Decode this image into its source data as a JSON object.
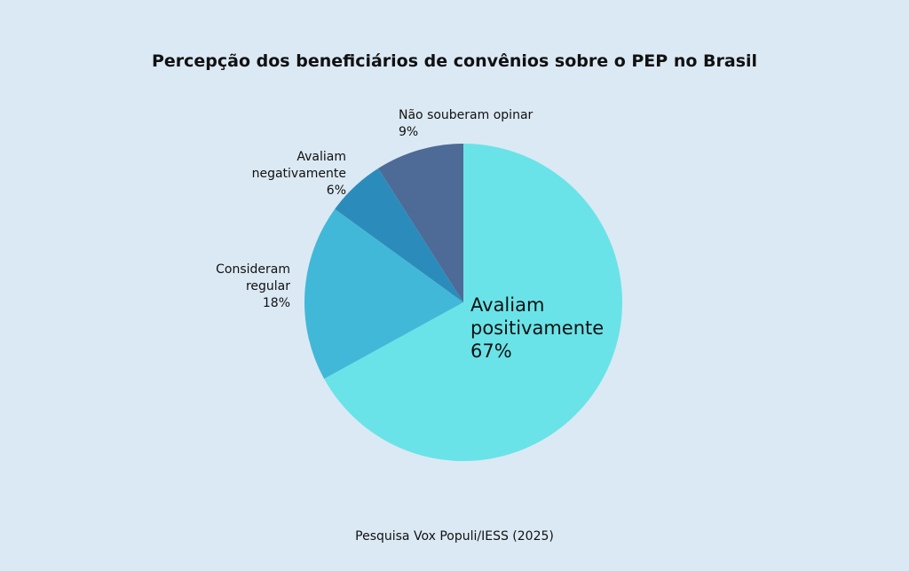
{
  "chart_data": {
    "type": "pie",
    "title": "Percepção dos beneficiários de convênios sobre o PEP no Brasil",
    "categories": [
      "Avaliam positivamente",
      "Consideram regular",
      "Avaliam negativamente",
      "Não souberam opinar"
    ],
    "values": [
      67,
      18,
      6,
      9
    ],
    "value_labels": [
      "67%",
      "18%",
      "6%",
      "9%"
    ],
    "colors": [
      "#6ae3e8",
      "#42b8d8",
      "#2b8cbb",
      "#4e6a96"
    ],
    "source": "Pesquisa Vox Populi/IESS (2025)"
  }
}
